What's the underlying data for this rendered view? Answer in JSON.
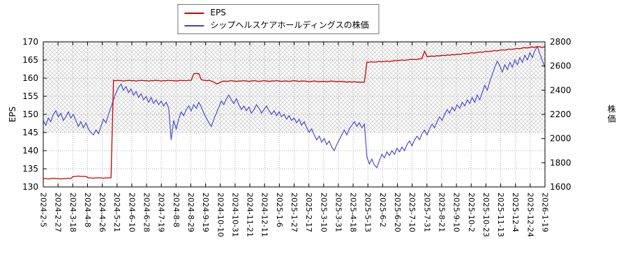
{
  "chart_data": {
    "type": "line",
    "title": "",
    "grid": true,
    "legend": {
      "position": "top-center",
      "entries": [
        "EPS",
        "シップヘルスケアホールディングスの株価"
      ]
    },
    "left_axis": {
      "label": "EPS",
      "min": 130,
      "max": 170,
      "tick_step": 5,
      "ticks": [
        130,
        135,
        140,
        145,
        150,
        155,
        160,
        165,
        170
      ]
    },
    "right_axis": {
      "label": "株価",
      "min": 1600,
      "max": 2800,
      "tick_step": 200,
      "ticks": [
        1600,
        1800,
        2000,
        2200,
        2400,
        2600,
        2800
      ]
    },
    "shaded_band": {
      "axis": "left",
      "from": 145,
      "to": 170,
      "style": "crosshatch",
      "color": "#c9c9c9"
    },
    "x_tick_labels": [
      "2024-2-5",
      "2024-2-27",
      "2024-3-18",
      "2024-4-8",
      "2024-4-26",
      "2024-5-21",
      "2024-6-10",
      "2024-6-28",
      "2024-7-19",
      "2024-8-8",
      "2024-8-29",
      "2024-9-19",
      "2024-10-10",
      "2024-10-31",
      "2024-11-21",
      "2024-12-11",
      "2025-1-6",
      "2025-1-27",
      "2025-2-17",
      "2025-3-10",
      "2025-3-31",
      "2025-4-18",
      "2025-5-13",
      "2025-6-2",
      "2025-6-20",
      "2025-7-10",
      "2025-7-31",
      "2025-8-21",
      "2025-9-10",
      "2025-10-2",
      "2025-10-23",
      "2025-11-13",
      "2025-12-4",
      "2025-12-24",
      "2026-1-19"
    ],
    "series": [
      {
        "name": "EPS",
        "axis": "left",
        "color": "#cc0000",
        "values": [
          132.3,
          132.3,
          132.2,
          132.3,
          132.4,
          132.3,
          132.3,
          132.2,
          132.3,
          132.3,
          132.4,
          132.3,
          132.9,
          132.9,
          133.0,
          132.9,
          132.9,
          132.9,
          132.5,
          132.5,
          132.4,
          132.5,
          132.5,
          132.5,
          132.4,
          132.5,
          132.5,
          132.5,
          159.4,
          159.3,
          159.4,
          159.3,
          159.2,
          159.3,
          159.4,
          159.3,
          159.3,
          159.2,
          159.3,
          159.4,
          159.3,
          159.3,
          159.2,
          159.3,
          159.3,
          159.4,
          159.3,
          159.2,
          159.3,
          159.3,
          159.4,
          159.3,
          159.3,
          159.2,
          159.3,
          159.4,
          159.3,
          159.3,
          159.4,
          159.4,
          161.2,
          161.3,
          161.2,
          159.6,
          159.4,
          159.3,
          159.4,
          159.2,
          158.9,
          158.4,
          158.6,
          159.0,
          159.2,
          159.1,
          159.2,
          159.3,
          159.2,
          159.1,
          159.2,
          159.2,
          159.3,
          159.2,
          159.1,
          159.2,
          159.3,
          159.2,
          159.1,
          159.2,
          159.3,
          159.2,
          159.1,
          159.2,
          159.2,
          159.3,
          159.2,
          159.1,
          159.2,
          159.2,
          159.1,
          159.2,
          159.3,
          159.2,
          159.1,
          159.2,
          159.2,
          159.1,
          159.0,
          159.1,
          159.2,
          159.1,
          159.0,
          159.1,
          159.1,
          159.0,
          159.1,
          159.2,
          159.1,
          159.0,
          159.1,
          159.1,
          159.0,
          158.9,
          159.0,
          158.9,
          159.0,
          158.9,
          158.9,
          158.8,
          158.9,
          164.4,
          164.4,
          164.5,
          164.4,
          164.5,
          164.6,
          164.5,
          164.6,
          164.7,
          164.6,
          164.7,
          164.8,
          164.8,
          164.9,
          165.0,
          164.9,
          165.0,
          165.1,
          165.2,
          165.1,
          165.2,
          165.3,
          165.4,
          167.4,
          165.9,
          166.0,
          166.1,
          166.0,
          166.2,
          166.1,
          166.3,
          166.2,
          166.4,
          166.3,
          166.5,
          166.4,
          166.6,
          166.5,
          166.7,
          166.8,
          166.7,
          166.9,
          167.0,
          166.9,
          167.1,
          167.2,
          167.1,
          167.3,
          167.4,
          167.3,
          167.5,
          167.6,
          167.5,
          167.7,
          167.8,
          167.7,
          167.9,
          168.0,
          167.9,
          168.1,
          168.2,
          168.1,
          168.3,
          168.4,
          168.3,
          168.5,
          168.6,
          168.5,
          168.7,
          168.6,
          168.5,
          168.6
        ]
      },
      {
        "name": "シップヘルスケアホールディングスの株価",
        "axis": "right",
        "color": "#4040c8",
        "values": [
          2150,
          2110,
          2170,
          2140,
          2200,
          2230,
          2180,
          2210,
          2150,
          2180,
          2220,
          2170,
          2200,
          2150,
          2100,
          2140,
          2090,
          2130,
          2080,
          2050,
          2030,
          2070,
          2040,
          2100,
          2160,
          2130,
          2200,
          2260,
          2320,
          2380,
          2420,
          2450,
          2400,
          2430,
          2380,
          2410,
          2360,
          2390,
          2340,
          2370,
          2320,
          2350,
          2300,
          2340,
          2290,
          2320,
          2280,
          2310,
          2270,
          2300,
          2250,
          1990,
          2150,
          2080,
          2160,
          2220,
          2190,
          2240,
          2270,
          2230,
          2280,
          2250,
          2300,
          2260,
          2210,
          2170,
          2130,
          2100,
          2160,
          2210,
          2260,
          2310,
          2280,
          2330,
          2360,
          2320,
          2290,
          2330,
          2280,
          2240,
          2270,
          2230,
          2260,
          2210,
          2240,
          2280,
          2250,
          2210,
          2240,
          2270,
          2230,
          2200,
          2230,
          2190,
          2220,
          2180,
          2200,
          2160,
          2190,
          2150,
          2170,
          2130,
          2160,
          2110,
          2140,
          2090,
          2050,
          2080,
          2030,
          1990,
          2020,
          1970,
          2000,
          1950,
          1980,
          1930,
          1900,
          1950,
          1990,
          2030,
          2070,
          2030,
          2080,
          2110,
          2140,
          2100,
          2130,
          2090,
          2120,
          1850,
          1790,
          1830,
          1780,
          1760,
          1820,
          1870,
          1840,
          1890,
          1860,
          1900,
          1870,
          1920,
          1890,
          1930,
          1900,
          1950,
          1980,
          1940,
          1990,
          2020,
          1990,
          2040,
          2070,
          2030,
          2080,
          2120,
          2090,
          2140,
          2180,
          2150,
          2200,
          2240,
          2210,
          2260,
          2230,
          2280,
          2250,
          2300,
          2270,
          2320,
          2290,
          2340,
          2300,
          2360,
          2320,
          2380,
          2440,
          2400,
          2470,
          2530,
          2590,
          2640,
          2600,
          2550,
          2610,
          2570,
          2630,
          2590,
          2650,
          2610,
          2670,
          2630,
          2690,
          2650,
          2710,
          2670,
          2730,
          2760,
          2700,
          2640,
          2590
        ]
      }
    ]
  }
}
